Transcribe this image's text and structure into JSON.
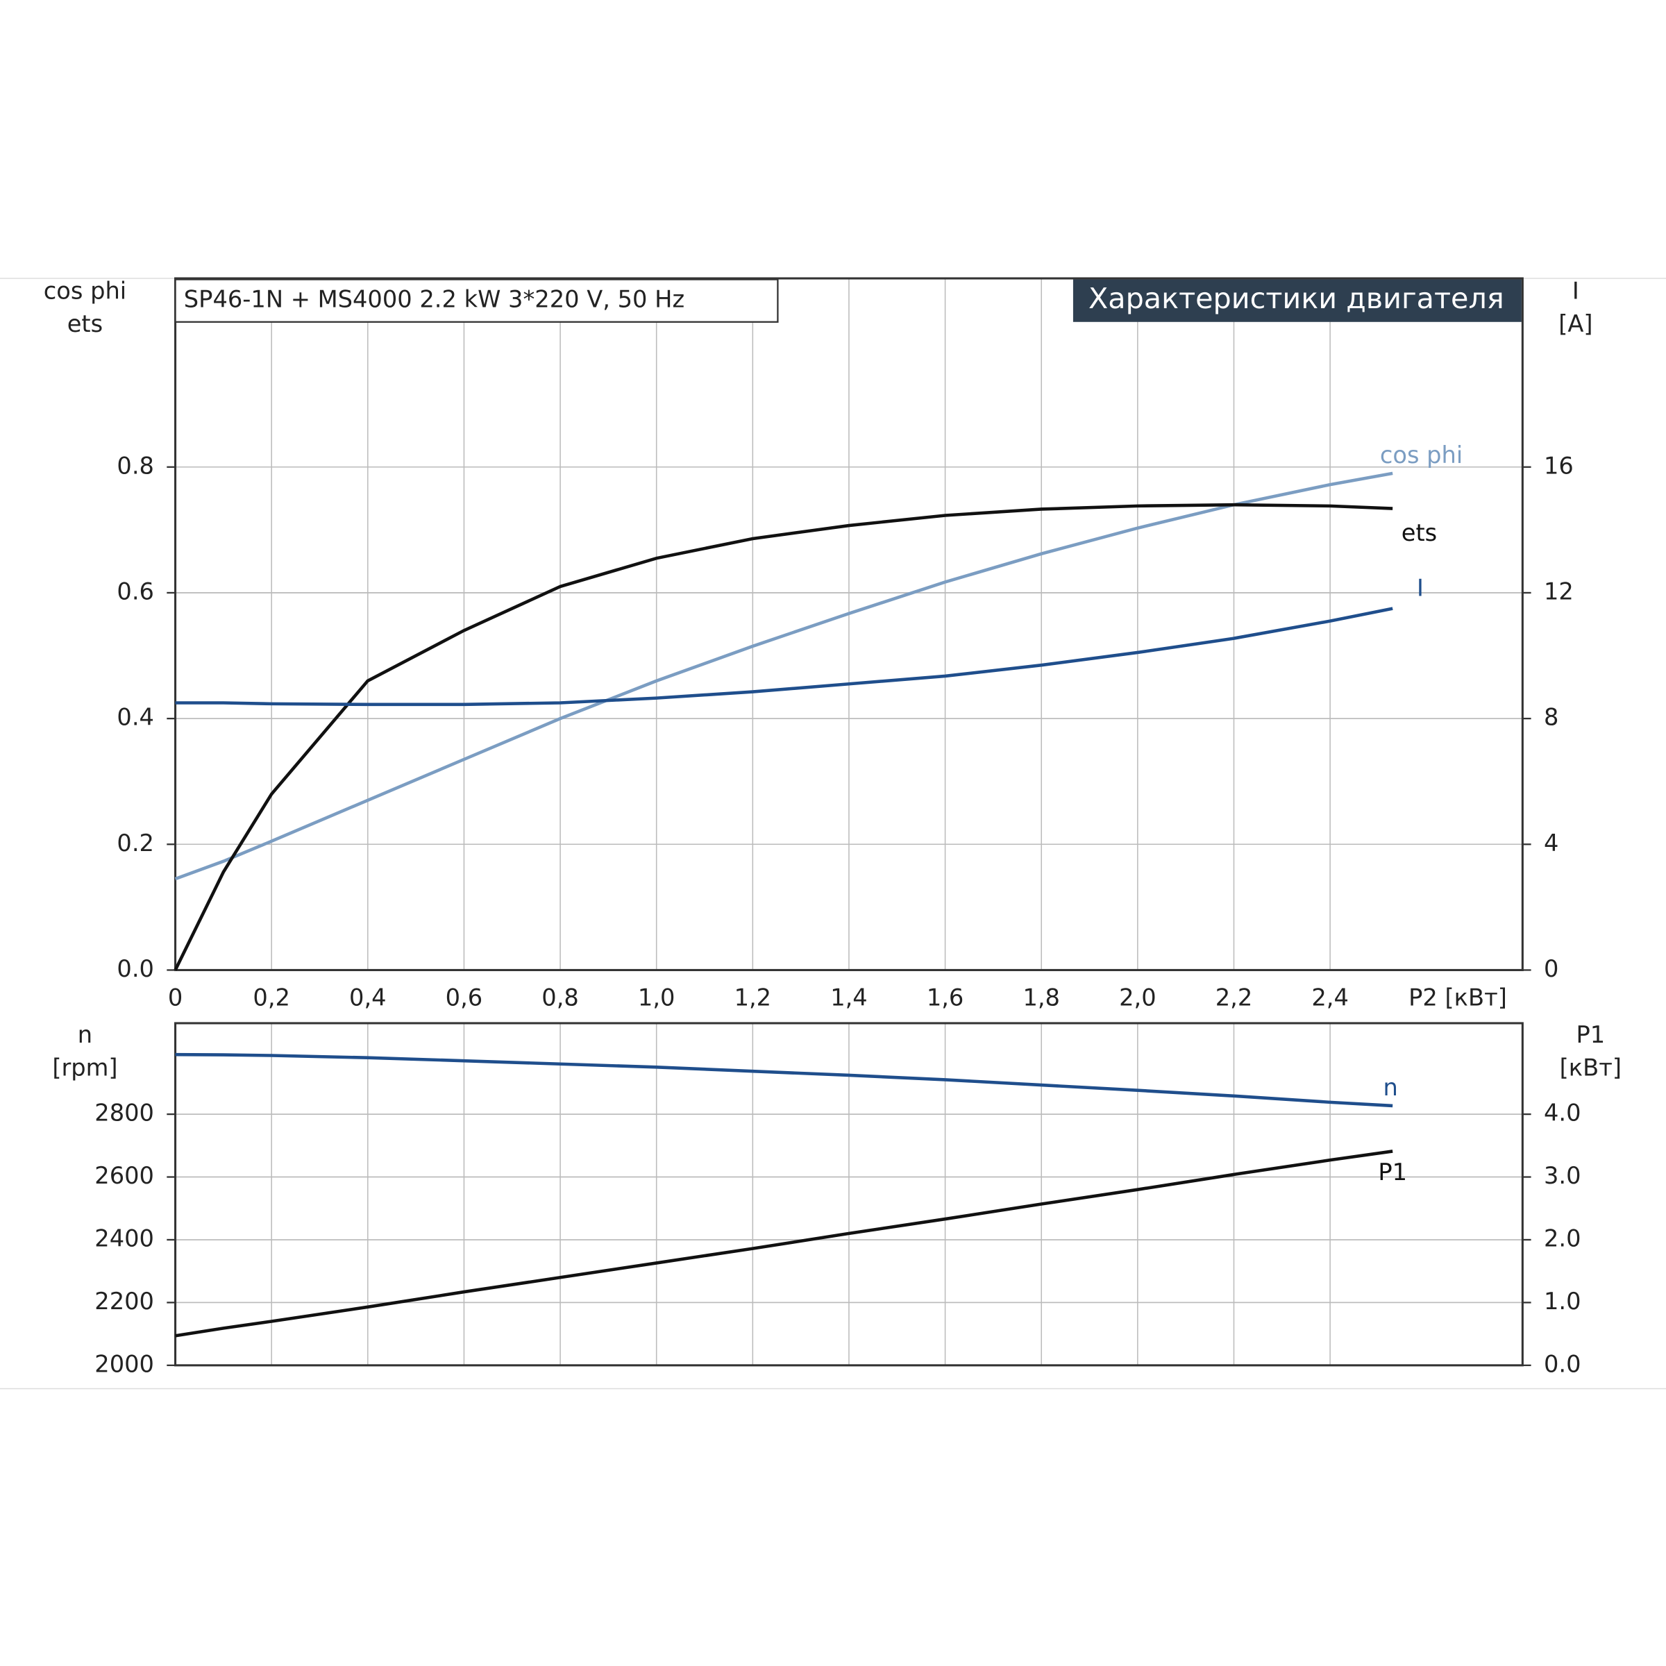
{
  "chart_data": [
    {
      "type": "line",
      "title": "Характеристики двигателя",
      "subtitle": "SP46-1N + MS4000   2.2 kW   3*220 V, 50 Hz",
      "xlabel": "P2 [кВт]",
      "ylabel": [
        "cos phi",
        "ets"
      ],
      "y2label": [
        "I",
        "[A]"
      ],
      "x": [
        0,
        0.1,
        0.2,
        0.4,
        0.6,
        0.8,
        1.0,
        1.2,
        1.4,
        1.6,
        1.8,
        2.0,
        2.2,
        2.4,
        2.53
      ],
      "xlim": [
        0,
        2.8
      ],
      "xticks": [
        0,
        {
          "value": 0.2,
          "label": "0,2"
        },
        {
          "value": 0.4,
          "label": "0,4"
        },
        {
          "value": 0.6,
          "label": "0,6"
        },
        {
          "value": 0.8,
          "label": "0,8"
        },
        {
          "value": 1.0,
          "label": "1,0"
        },
        {
          "value": 1.2,
          "label": "1,2"
        },
        {
          "value": 1.4,
          "label": "1,4"
        },
        {
          "value": 1.6,
          "label": "1,6"
        },
        {
          "value": 1.8,
          "label": "1,8"
        },
        {
          "value": 2.0,
          "label": "2,0"
        },
        {
          "value": 2.2,
          "label": "2,2"
        },
        {
          "value": 2.4,
          "label": "2,4"
        }
      ],
      "ylim": [
        0,
        1.1
      ],
      "yticks": [
        {
          "value": 0,
          "label": "0.0"
        },
        0.2,
        0.4,
        0.6,
        0.8
      ],
      "y2lim": [
        0,
        22
      ],
      "y2ticks": [
        0,
        4,
        8,
        12,
        16
      ],
      "grid": true,
      "series": [
        {
          "name": "cos phi",
          "color": "#7b9dc2",
          "values": [
            0.145,
            0.173,
            0.205,
            0.27,
            0.335,
            0.4,
            0.46,
            0.515,
            0.567,
            0.617,
            0.662,
            0.703,
            0.74,
            0.772,
            0.79
          ]
        },
        {
          "name": "ets",
          "color": "#111111",
          "values": [
            0,
            0.156,
            0.28,
            0.46,
            0.54,
            0.61,
            0.655,
            0.686,
            0.707,
            0.723,
            0.733,
            0.738,
            0.74,
            0.738,
            0.734
          ]
        },
        {
          "name": "I",
          "color": "#1f4e8c",
          "axis": "y2",
          "values": [
            8.5,
            8.5,
            8.47,
            8.45,
            8.45,
            8.5,
            8.65,
            8.85,
            9.1,
            9.35,
            9.7,
            10.1,
            10.55,
            11.1,
            11.5
          ]
        }
      ]
    },
    {
      "type": "line",
      "ylabel": [
        "n",
        "[rpm]"
      ],
      "y2label": [
        "P1",
        "[кВт]"
      ],
      "x": [
        0,
        0.1,
        0.2,
        0.4,
        0.6,
        0.8,
        1.0,
        1.2,
        1.4,
        1.6,
        1.8,
        2.0,
        2.2,
        2.4,
        2.53
      ],
      "xlim": [
        0,
        2.8
      ],
      "ylim": [
        2000,
        3090
      ],
      "yticks": [
        2000,
        2200,
        2400,
        2600,
        2800
      ],
      "y2lim": [
        0,
        5.45
      ],
      "y2ticks": [
        {
          "value": 0,
          "label": "0.0"
        },
        {
          "value": 1,
          "label": "1.0"
        },
        {
          "value": 2,
          "label": "2.0"
        },
        {
          "value": 3,
          "label": "3.0"
        },
        {
          "value": 4,
          "label": "4.0"
        }
      ],
      "grid": true,
      "series": [
        {
          "name": "n",
          "color": "#1f4e8c",
          "values": [
            2990,
            2989,
            2987,
            2980,
            2970,
            2960,
            2950,
            2937,
            2924,
            2910,
            2893,
            2876,
            2858,
            2838,
            2827
          ]
        },
        {
          "name": "P1",
          "color": "#111111",
          "axis": "y2",
          "values": [
            0.47,
            0.59,
            0.7,
            0.93,
            1.17,
            1.4,
            1.63,
            1.86,
            2.1,
            2.33,
            2.57,
            2.8,
            3.04,
            3.27,
            3.41
          ]
        }
      ]
    }
  ]
}
